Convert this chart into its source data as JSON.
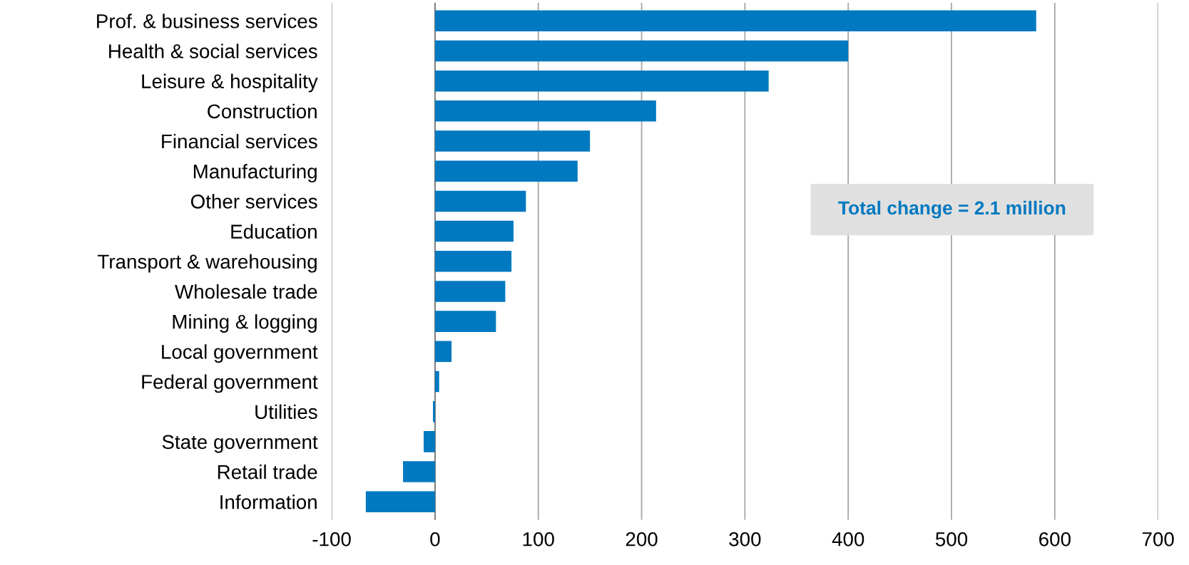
{
  "chart_data": {
    "type": "bar",
    "orientation": "horizontal",
    "categories": [
      "Prof. & business services",
      "Health & social services",
      "Leisure & hospitality",
      "Construction",
      "Financial services",
      "Manufacturing",
      "Other services",
      "Education",
      "Transport & warehousing",
      "Wholesale trade",
      "Mining & logging",
      "Local government",
      "Federal government",
      "Utilities",
      "State government",
      "Retail trade",
      "Information"
    ],
    "values": [
      582,
      400,
      323,
      214,
      150,
      138,
      88,
      76,
      74,
      68,
      59,
      16,
      4,
      -2,
      -11,
      -31,
      -67
    ],
    "color": "#0079c1",
    "xlim": [
      -100,
      700
    ],
    "xticks": [
      -100,
      0,
      100,
      200,
      300,
      400,
      500,
      600,
      700
    ],
    "grid": "x",
    "annotations": [
      "Total change = 2.1 million"
    ]
  }
}
